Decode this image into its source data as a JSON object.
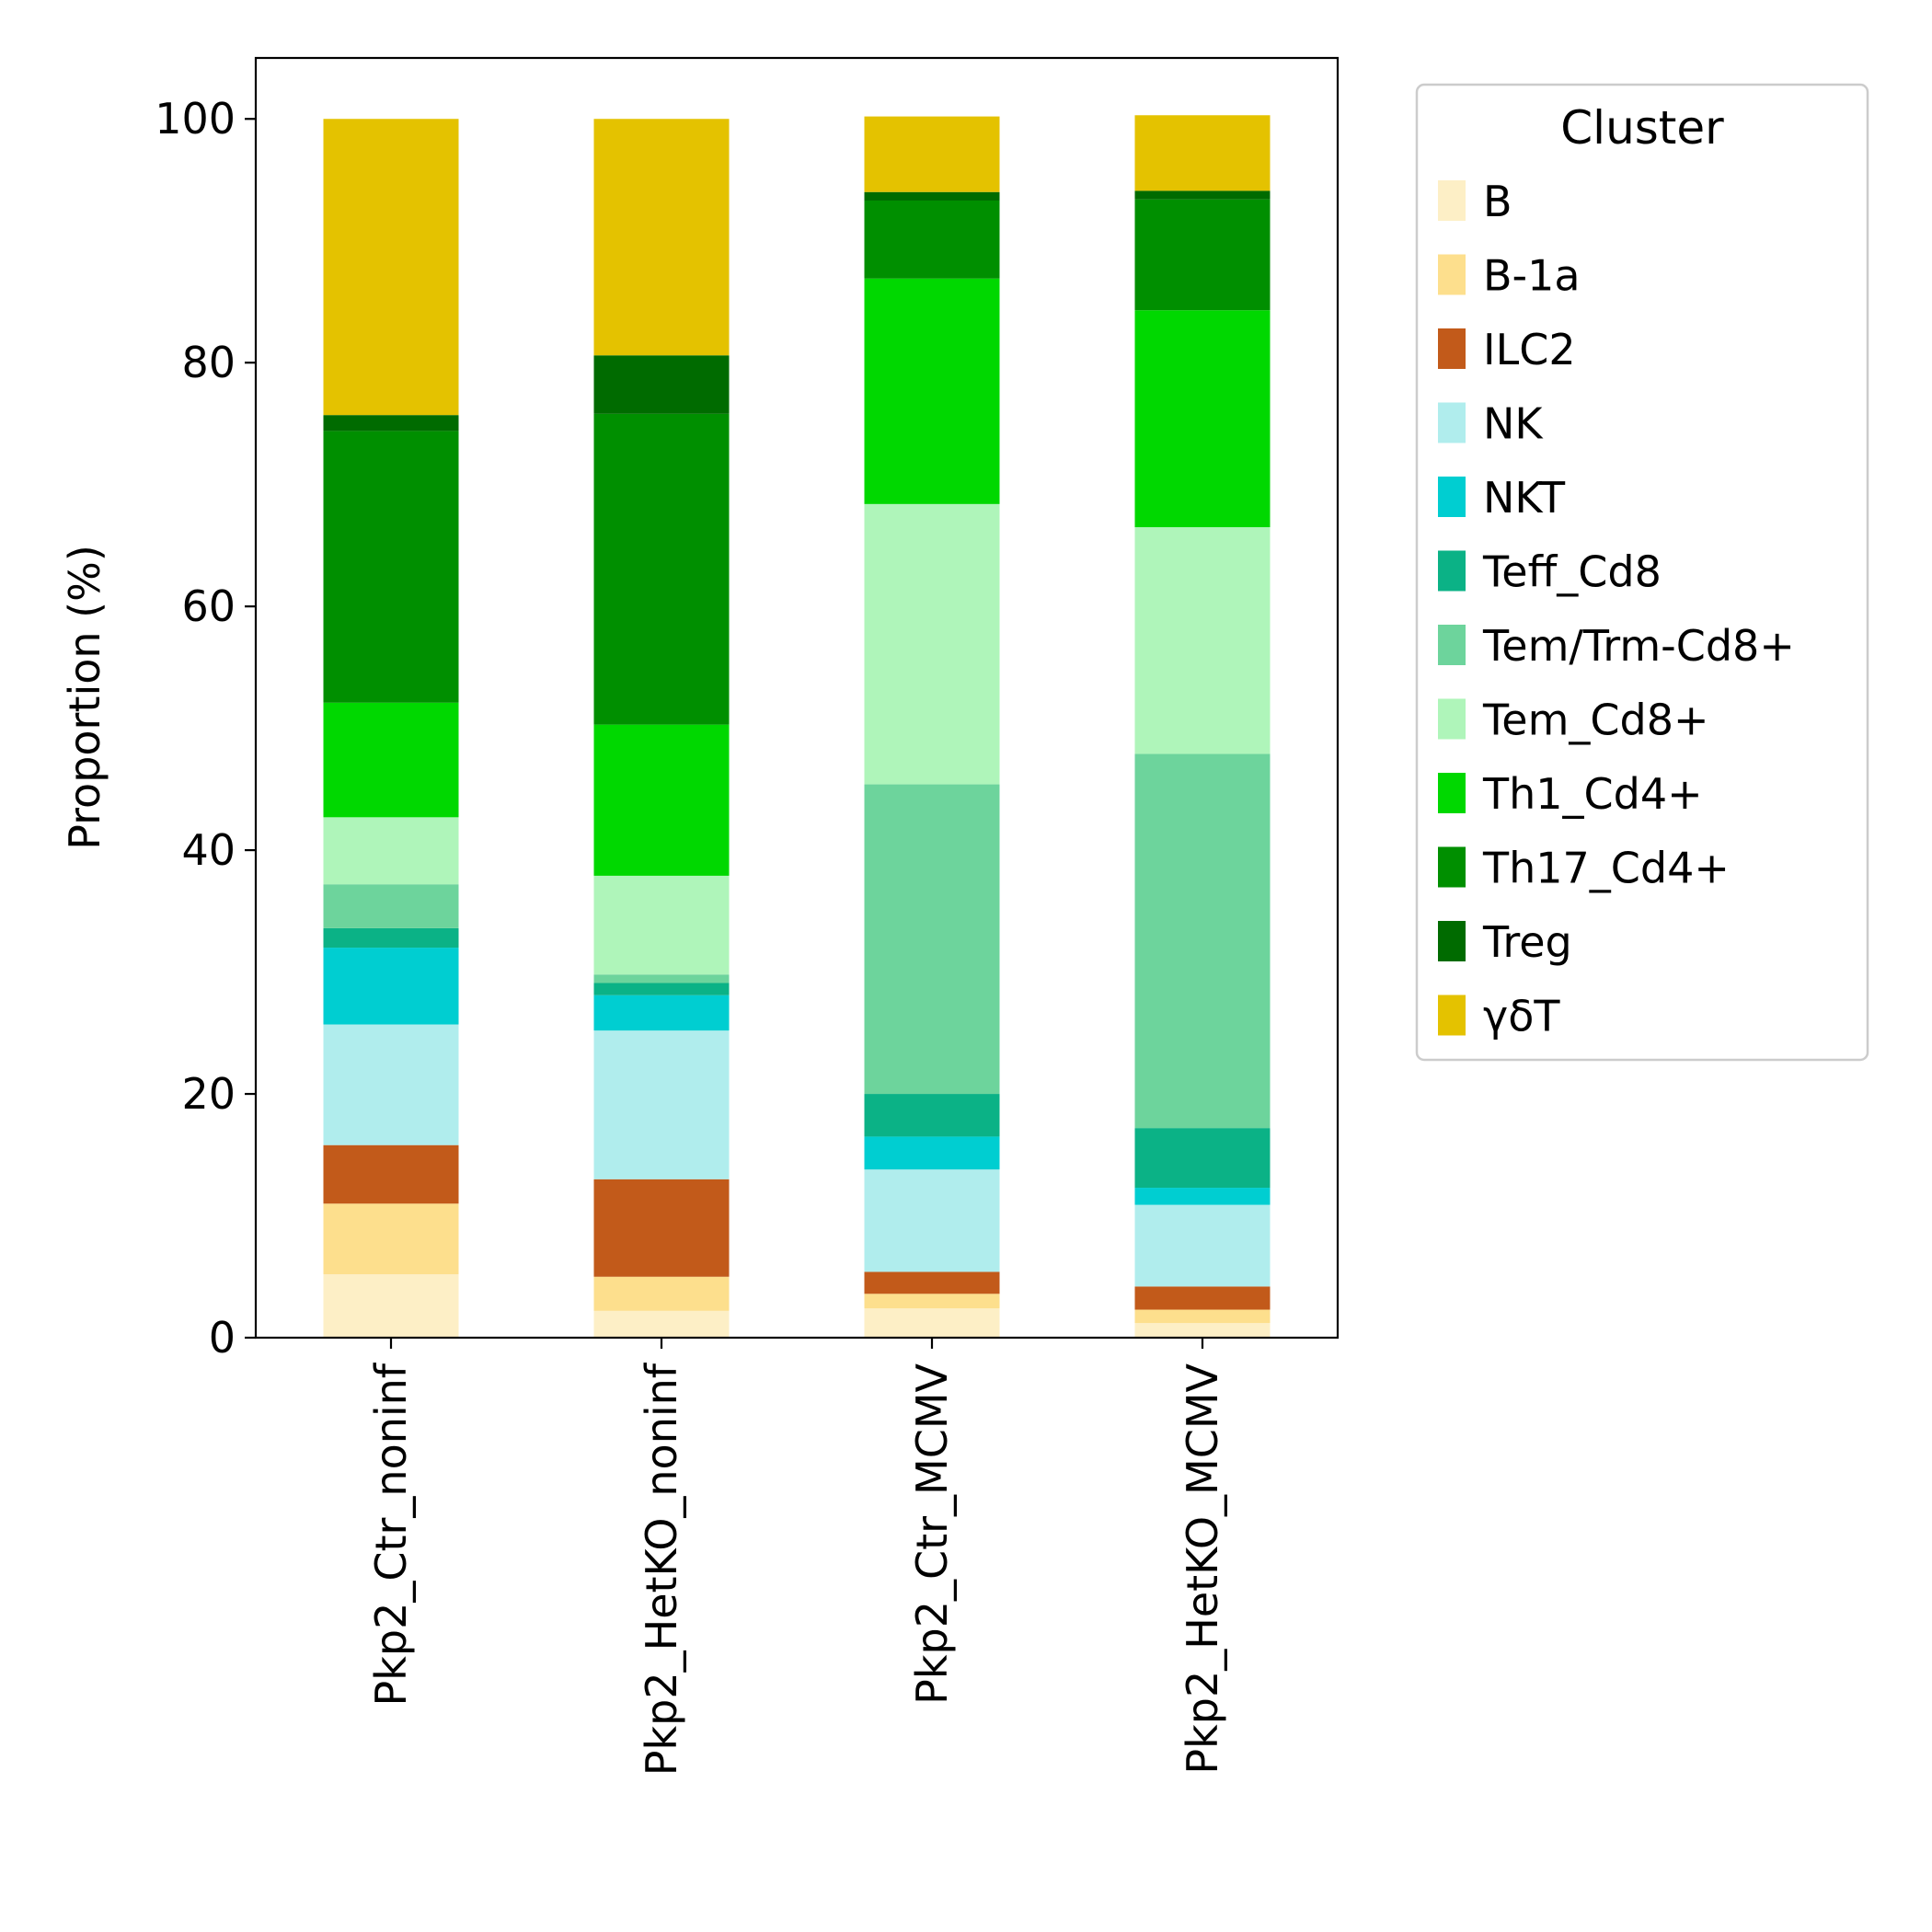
{
  "chart_data": {
    "type": "bar",
    "stacked": true,
    "ylabel": "Proportion (%)",
    "ylim": [
      0,
      105
    ],
    "yticks": [
      0,
      20,
      40,
      60,
      80,
      100
    ],
    "grid": false,
    "categories": [
      "Pkp2_Ctr_noninf",
      "Pkp2_HetKO_noninf",
      "Pkp2_Ctr_MCMV",
      "Pkp2_HetKO_MCMV"
    ],
    "legend": {
      "title": "Cluster",
      "placement": "outside-right"
    },
    "series": [
      {
        "name": "B",
        "color": "#FDEFC6",
        "values": [
          5.2,
          2.2,
          2.4,
          1.2
        ]
      },
      {
        "name": "B-1a",
        "color": "#FDDF8D",
        "values": [
          5.8,
          2.8,
          1.2,
          1.1
        ]
      },
      {
        "name": "ILC2",
        "color": "#C25A1A",
        "values": [
          4.8,
          8.0,
          1.8,
          1.9
        ]
      },
      {
        "name": "NK",
        "color": "#B0EDED",
        "values": [
          9.9,
          12.2,
          8.4,
          6.7
        ]
      },
      {
        "name": "NKT",
        "color": "#00CED1",
        "values": [
          6.3,
          2.9,
          2.7,
          1.4
        ]
      },
      {
        "name": "Teff_Cd8",
        "color": "#0BB286",
        "values": [
          1.6,
          1.0,
          3.5,
          4.9
        ]
      },
      {
        "name": "Tem/Trm-Cd8+",
        "color": "#6DD49C",
        "values": [
          3.6,
          0.7,
          25.4,
          30.7
        ]
      },
      {
        "name": "Tem_Cd8+",
        "color": "#AFF5BA",
        "values": [
          5.5,
          8.1,
          23.0,
          18.6
        ]
      },
      {
        "name": "Th1_Cd4+",
        "color": "#00D800",
        "values": [
          9.4,
          12.4,
          18.5,
          17.8
        ]
      },
      {
        "name": "Th17_Cd4+",
        "color": "#008F00",
        "values": [
          22.3,
          25.5,
          6.4,
          9.1
        ]
      },
      {
        "name": "Treg",
        "color": "#006B00",
        "values": [
          1.3,
          4.8,
          0.7,
          0.7
        ]
      },
      {
        "name": "γδT",
        "color": "#E4C200",
        "values": [
          24.3,
          19.4,
          6.2,
          6.2
        ]
      }
    ]
  }
}
